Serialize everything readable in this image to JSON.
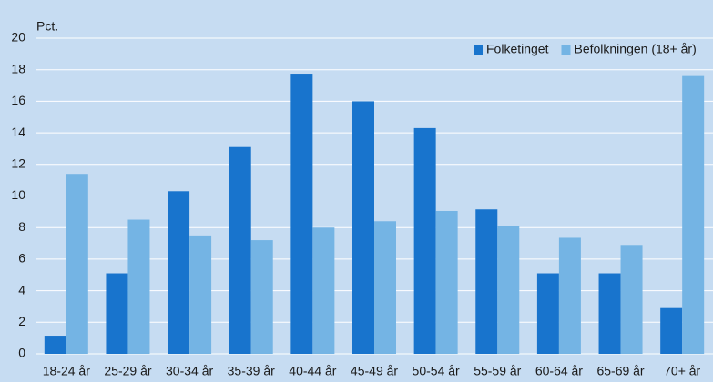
{
  "chart_data": {
    "type": "bar",
    "y_label": "Pct.",
    "categories": [
      "18-24 år",
      "25-29 år",
      "30-34 år",
      "35-39 år",
      "40-44 år",
      "45-49 år",
      "50-54 år",
      "55-59 år",
      "60-64 år",
      "65-69 år",
      "70+ år"
    ],
    "series": [
      {
        "name": "Folketinget",
        "color": "#1874cd",
        "values": [
          1.15,
          5.1,
          10.3,
          13.1,
          17.75,
          16.0,
          14.3,
          9.15,
          5.1,
          5.1,
          2.9
        ]
      },
      {
        "name": "Befolkningen (18+ år)",
        "color": "#74b4e4",
        "values": [
          11.4,
          8.5,
          7.5,
          7.2,
          8.0,
          8.4,
          9.05,
          8.1,
          7.35,
          6.9,
          17.6
        ]
      }
    ],
    "ylim": [
      0,
      20
    ],
    "yticks": [
      0,
      2,
      4,
      6,
      8,
      10,
      12,
      14,
      16,
      18,
      20
    ],
    "grid": true,
    "legend": "top-right"
  }
}
